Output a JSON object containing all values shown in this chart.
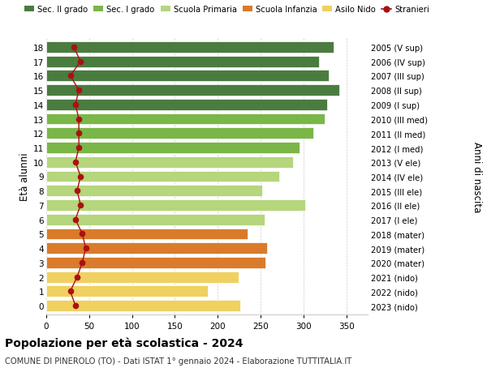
{
  "ages": [
    18,
    17,
    16,
    15,
    14,
    13,
    12,
    11,
    10,
    9,
    8,
    7,
    6,
    5,
    4,
    3,
    2,
    1,
    0
  ],
  "years": [
    "2005 (V sup)",
    "2006 (IV sup)",
    "2007 (III sup)",
    "2008 (II sup)",
    "2009 (I sup)",
    "2010 (III med)",
    "2011 (II med)",
    "2012 (I med)",
    "2013 (V ele)",
    "2014 (IV ele)",
    "2015 (III ele)",
    "2016 (II ele)",
    "2017 (I ele)",
    "2018 (mater)",
    "2019 (mater)",
    "2020 (mater)",
    "2021 (nido)",
    "2022 (nido)",
    "2023 (nido)"
  ],
  "bar_values": [
    335,
    318,
    330,
    342,
    328,
    325,
    312,
    295,
    288,
    272,
    252,
    302,
    255,
    235,
    258,
    256,
    224,
    188,
    226
  ],
  "bar_colors": [
    "#4a7c3f",
    "#4a7c3f",
    "#4a7c3f",
    "#4a7c3f",
    "#4a7c3f",
    "#7ab648",
    "#7ab648",
    "#7ab648",
    "#b5d67c",
    "#b5d67c",
    "#b5d67c",
    "#b5d67c",
    "#b5d67c",
    "#d97b2a",
    "#d97b2a",
    "#d97b2a",
    "#f0d060",
    "#f0d060",
    "#f0d060"
  ],
  "stranieri_values": [
    32,
    40,
    28,
    38,
    34,
    38,
    38,
    38,
    34,
    40,
    36,
    40,
    34,
    42,
    46,
    42,
    36,
    28,
    34
  ],
  "stranieri_color": "#aa1111",
  "legend_labels": [
    "Sec. II grado",
    "Sec. I grado",
    "Scuola Primaria",
    "Scuola Infanzia",
    "Asilo Nido",
    "Stranieri"
  ],
  "legend_colors": [
    "#4a7c3f",
    "#7ab648",
    "#b5d67c",
    "#d97b2a",
    "#f0d060",
    "#aa1111"
  ],
  "ylabel_left": "Età alunni",
  "ylabel_right": "Anni di nascita",
  "title": "Popolazione per età scolastica - 2024",
  "subtitle": "COMUNE DI PINEROLO (TO) - Dati ISTAT 1° gennaio 2024 - Elaborazione TUTTITALIA.IT",
  "xlim": [
    0,
    375
  ],
  "xticks": [
    0,
    50,
    100,
    150,
    200,
    250,
    300,
    350
  ],
  "bg_color": "#ffffff",
  "bar_height": 0.78
}
